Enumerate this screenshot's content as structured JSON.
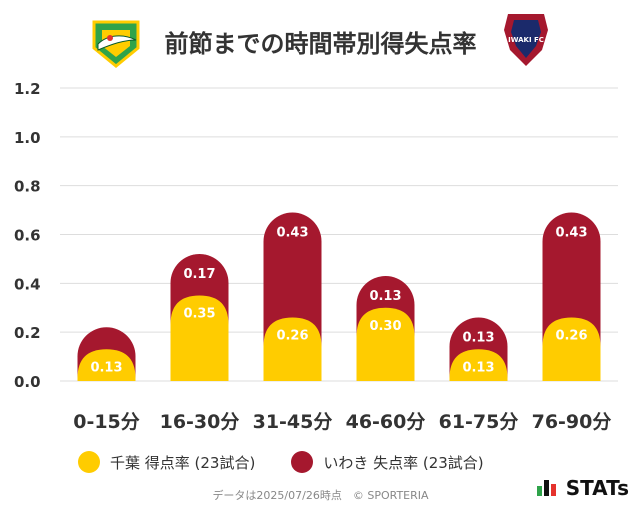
{
  "title": "前節までの時間帯別得失点率",
  "colors": {
    "home": "#FFCC00",
    "away": "#A5182E"
  },
  "icons": {
    "home_logo": "jef-united-chiba-crest-icon",
    "away_logo": "iwaki-fc-crest-icon"
  },
  "away_logo_text": "IWAKI FC",
  "legend": {
    "home": "千葉 得点率 (23試合)",
    "away": "いわき 失点率 (23試合)"
  },
  "footer": "データは2025/07/26時点　© SPORTERIA",
  "brand": "STATs",
  "chart_data": {
    "type": "bar",
    "stacked": true,
    "categories": [
      "0-15分",
      "16-30分",
      "31-45分",
      "46-60分",
      "61-75分",
      "76-90分"
    ],
    "series": [
      {
        "name": "千葉 得点率 (23試合)",
        "values": [
          0.13,
          0.35,
          0.26,
          0.3,
          0.13,
          0.26
        ],
        "labels": [
          "0.13",
          "0.35",
          "0.26",
          "0.30",
          "0.13",
          "0.26"
        ]
      },
      {
        "name": "いわき 失点率 (23試合)",
        "values": [
          0.09,
          0.17,
          0.43,
          0.13,
          0.13,
          0.43
        ],
        "labels": [
          "",
          "0.17",
          "0.43",
          "0.13",
          "0.13",
          "0.43"
        ]
      }
    ],
    "yticks": [
      "0.0",
      "0.2",
      "0.4",
      "0.6",
      "0.8",
      "1.0",
      "1.2"
    ],
    "ylim": [
      0,
      1.2
    ],
    "grid": true,
    "legend_position": "bottom"
  }
}
